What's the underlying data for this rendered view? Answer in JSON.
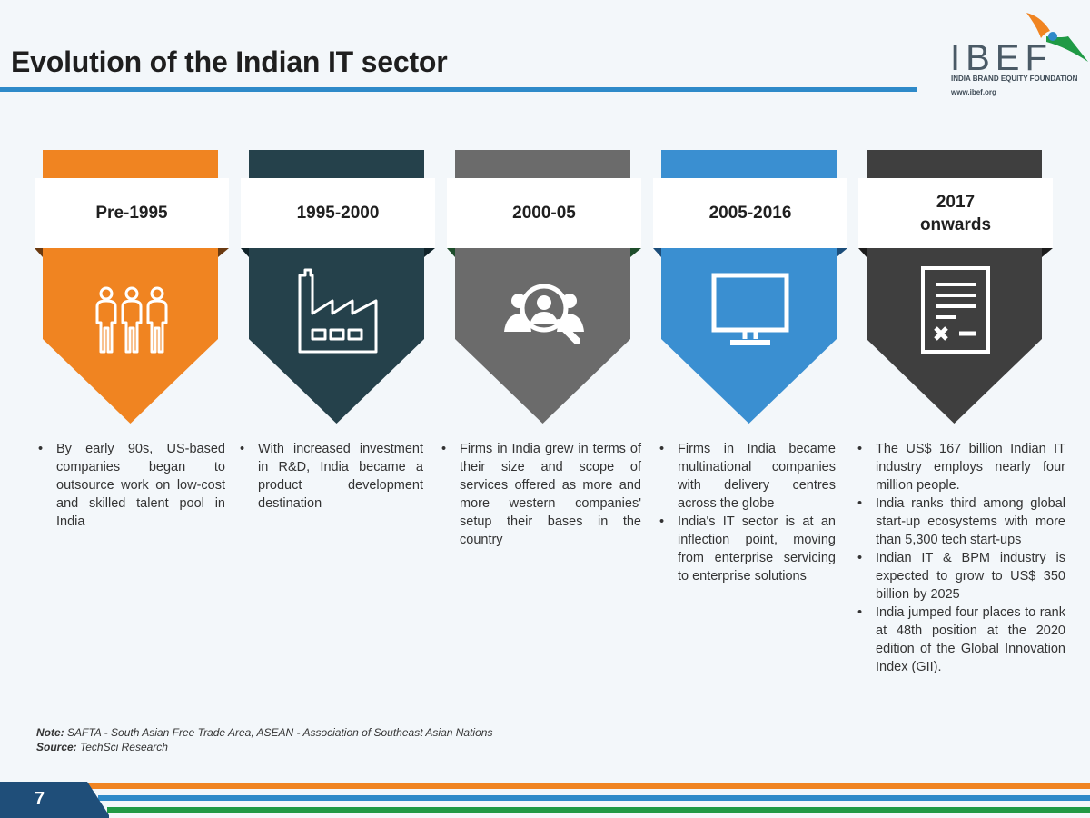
{
  "header": {
    "title": "Evolution of the Indian IT sector"
  },
  "logo": {
    "name": "IBEF",
    "tagline": "INDIA BRAND EQUITY FOUNDATION",
    "url": "www.ibef.org"
  },
  "stages": [
    {
      "label": "Pre-1995",
      "color": "#f08421",
      "dark": "#6b3a10",
      "icon": "people-icon",
      "bullets": [
        "By early 90s, US-based companies began to outsource work on low-cost and skilled talent pool in India"
      ]
    },
    {
      "label": "1995-2000",
      "color": "#25414b",
      "dark": "#10232a",
      "icon": "factory-icon",
      "bullets": [
        "With increased investment in R&D, India became a product development destination"
      ]
    },
    {
      "label": "2000-05",
      "color": "#6b6b6b",
      "dark": "#1e4d2b",
      "icon": "search-people-icon",
      "bullets": [
        "Firms in India grew in terms of their size and scope of services offered as more and more western companies' setup their bases in the country"
      ]
    },
    {
      "label": "2005-2016",
      "color": "#3a8fd1",
      "dark": "#1b4d7a",
      "icon": "monitor-icon",
      "bullets": [
        "Firms in India became multinational companies with delivery centres across the globe",
        "India's IT sector is at an inflection point, moving from enterprise servicing to enterprise solutions"
      ]
    },
    {
      "label": "2017\nonwards",
      "color": "#3f3f3f",
      "dark": "#1c1c1c",
      "icon": "document-icon",
      "bullets": [
        "The US$ 167 billion Indian IT industry employs nearly four million people.",
        "India ranks third among global start-up ecosystems with more than 5,300 tech start-ups",
        "Indian IT & BPM industry is expected to grow to US$ 350 billion by 2025",
        "India jumped four places to rank at 48th position at the 2020 edition of the Global Innovation Index (GII)."
      ]
    }
  ],
  "footer": {
    "note_label": "Note:",
    "note_text": "SAFTA - South Asian Free Trade Area, ASEAN - Association of Southeast Asian Nations",
    "source_label": "Source:",
    "source_text": "TechSci Research",
    "page_number": "7"
  }
}
